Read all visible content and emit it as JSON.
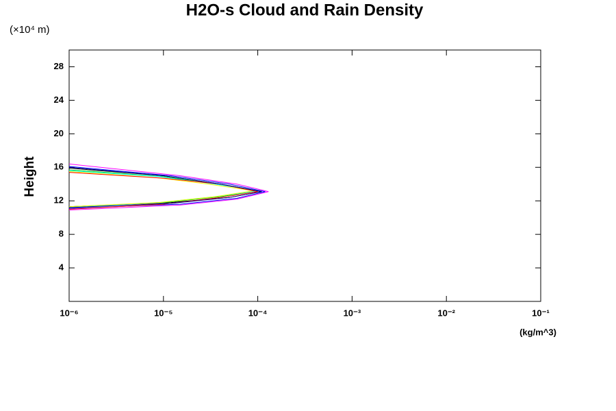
{
  "chart_data": {
    "type": "line",
    "title": "H2O-s Cloud and Rain Density",
    "y_unit": "(×10⁴ m)",
    "y_label": "Height",
    "x_unit": "(kg/m^3)",
    "xscale": "log",
    "xlim": [
      1e-06,
      0.1
    ],
    "xticks": [
      {
        "value": 1e-06,
        "label": "10⁻⁶"
      },
      {
        "value": 1e-05,
        "label": "10⁻⁵"
      },
      {
        "value": 0.0001,
        "label": "10⁻⁴"
      },
      {
        "value": 0.001,
        "label": "10⁻³"
      },
      {
        "value": 0.01,
        "label": "10⁻²"
      },
      {
        "value": 0.1,
        "label": "10⁻¹"
      }
    ],
    "ylim": [
      0,
      30
    ],
    "yticks": [
      4,
      8,
      12,
      16,
      20,
      24,
      28
    ],
    "series": [
      {
        "color": "#ff00ff",
        "x": [
          1e-06,
          1.5e-05,
          6e-05,
          0.00013,
          6e-05,
          1.5e-05,
          1e-06
        ],
        "y": [
          10.9,
          11.5,
          12.2,
          13.1,
          14.0,
          15.0,
          16.4
        ]
      },
      {
        "color": "#0000ff",
        "x": [
          1e-06,
          1.5e-05,
          6e-05,
          0.00012,
          5e-05,
          1.2e-05,
          1e-06
        ],
        "y": [
          11.1,
          11.6,
          12.3,
          13.1,
          14.0,
          15.0,
          16.1
        ]
      },
      {
        "color": "#000000",
        "x": [
          1e-06,
          1.2e-05,
          5e-05,
          0.00011,
          4e-05,
          1e-05,
          1e-06
        ],
        "y": [
          11.3,
          11.8,
          12.4,
          13.1,
          14.0,
          15.0,
          15.9
        ]
      },
      {
        "color": "#00cc00",
        "x": [
          1e-06,
          1e-05,
          4e-05,
          0.0001,
          4e-05,
          1e-05,
          1e-06
        ],
        "y": [
          11.3,
          11.8,
          12.5,
          13.2,
          14.0,
          14.9,
          15.7
        ]
      },
      {
        "color": "#00ffff",
        "x": [
          1e-06,
          9e-06,
          3.5e-05,
          0.0001,
          3.5e-05,
          9e-06,
          1e-06
        ],
        "y": [
          11.2,
          11.8,
          12.5,
          13.2,
          14.0,
          14.9,
          15.6
        ]
      },
      {
        "color": "#ffff00",
        "x": [
          1e-06,
          9e-06,
          3.5e-05,
          9e-05,
          3e-05,
          8e-06,
          1e-06
        ],
        "y": [
          11.3,
          11.8,
          12.5,
          13.2,
          14.0,
          14.8,
          15.5
        ]
      },
      {
        "color": "#ff0000",
        "x": [
          1e-06,
          1e-05,
          4e-05,
          0.0001,
          4e-05,
          1e-05,
          1e-06
        ],
        "y": [
          11.0,
          11.6,
          12.4,
          13.1,
          14.0,
          14.7,
          15.4
        ]
      },
      {
        "color": "#000080",
        "x": [
          1e-06,
          1.2e-05,
          5e-05,
          0.00011,
          4e-05,
          1e-05,
          1e-06
        ],
        "y": [
          11.2,
          11.7,
          12.4,
          13.1,
          14.0,
          15.0,
          16.0
        ]
      }
    ]
  }
}
